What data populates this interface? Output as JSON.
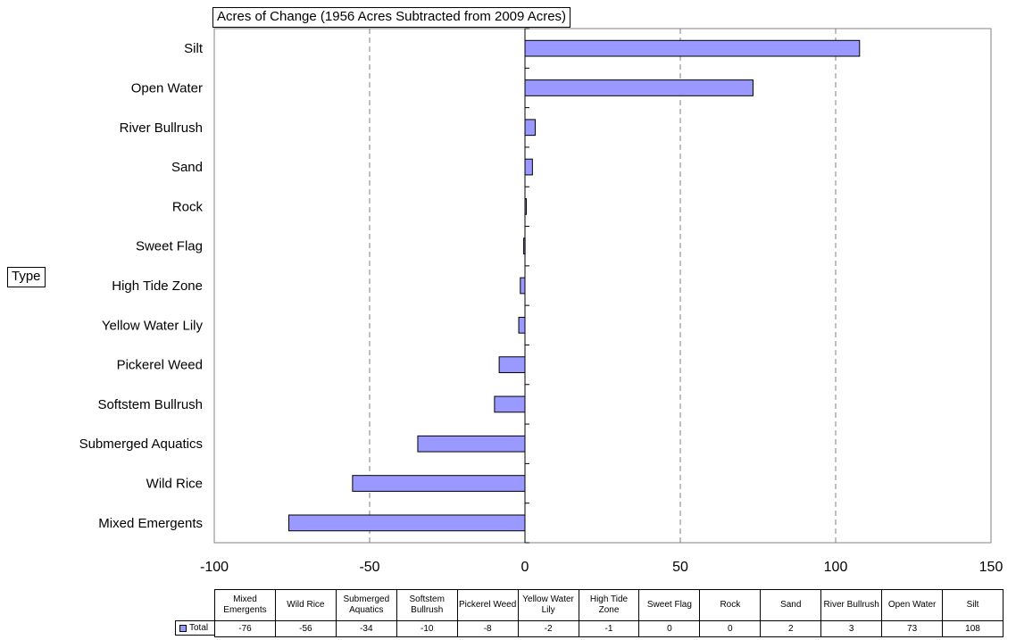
{
  "chart_data": {
    "type": "bar",
    "orientation": "horizontal",
    "title": "Acres of Change (1956 Acres Subtracted from 2009 Acres)",
    "category_field": "Type",
    "categories": [
      "Mixed Emergents",
      "Wild Rice",
      "Submerged Aquatics",
      "Softstem Bullrush",
      "Pickerel Weed",
      "Yellow Water Lily",
      "High Tide Zone",
      "Sweet Flag",
      "Rock",
      "Sand",
      "River Bullrush",
      "Open Water",
      "Silt"
    ],
    "table_headers": [
      "Mixed Emergents",
      "Wild Rice",
      "Submerged Aquatics",
      "Softstem Bullrush",
      "Pickerel Weed",
      "Yellow Water Lily",
      "High Tide Zone",
      "Sweet Flag",
      "Rock",
      "Sand",
      "River Bullrush",
      "Open Water",
      "Silt"
    ],
    "series": [
      {
        "name": "Total",
        "values": [
          -76,
          -56,
          -34,
          -10,
          -8,
          -2,
          -1,
          0,
          0,
          2,
          3,
          73,
          108
        ],
        "display": [
          "-76",
          "-56",
          "-34",
          "-10",
          "-8",
          "-2",
          "-1",
          "0",
          "0",
          "2",
          "3",
          "73",
          "108"
        ]
      }
    ],
    "bar_values": [
      -76,
      -55.5,
      -34.5,
      -9.8,
      -8.3,
      -2,
      -1.5,
      -0.4,
      0.4,
      2.4,
      3.3,
      73.4,
      107.7
    ],
    "xlim": [
      -100,
      150
    ],
    "xticks": [
      "-100",
      "-50",
      "0",
      "50",
      "100",
      "150"
    ],
    "xtick_values": [
      -100,
      -50,
      0,
      50,
      100,
      150
    ],
    "grid": "vertical dashed",
    "bar_color": "#9999ff",
    "legend": "table"
  }
}
